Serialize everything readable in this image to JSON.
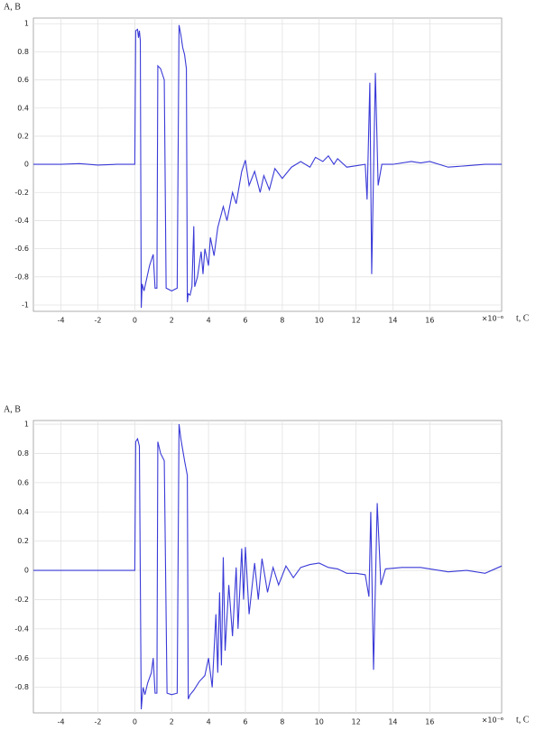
{
  "chart_data": [
    {
      "type": "line",
      "y_label": "A, B",
      "x_label": "t, C",
      "x_multiplier": "×10⁻⁶",
      "xlim": [
        -5.5,
        19.9
      ],
      "ylim": [
        -1.045,
        1.04
      ],
      "grid": true,
      "xticks": [
        -4,
        -2,
        0,
        2,
        4,
        6,
        8,
        10,
        12,
        14,
        16
      ],
      "yticks": [
        1,
        0.8,
        0.6,
        0.4,
        0.2,
        0,
        -0.2,
        -0.4,
        -0.6,
        -0.8,
        -1
      ],
      "x": [
        -5.5,
        -4,
        -3,
        -2,
        -1,
        0,
        0.05,
        0.15,
        0.2,
        0.25,
        0.3,
        0.35,
        0.4,
        0.5,
        0.6,
        0.8,
        1.0,
        1.1,
        1.2,
        1.25,
        1.4,
        1.6,
        1.7,
        2.0,
        2.3,
        2.4,
        2.5,
        2.6,
        2.7,
        2.8,
        2.85,
        2.9,
        3.0,
        3.1,
        3.2,
        3.25,
        3.4,
        3.6,
        3.7,
        3.8,
        4.0,
        4.1,
        4.3,
        4.5,
        4.8,
        5.0,
        5.3,
        5.5,
        5.8,
        6.0,
        6.2,
        6.5,
        6.8,
        7.0,
        7.3,
        7.6,
        8.0,
        8.5,
        9.0,
        9.5,
        9.8,
        10.2,
        10.5,
        10.8,
        11.0,
        11.5,
        12.0,
        12.5,
        12.6,
        12.75,
        12.85,
        13.05,
        13.2,
        13.4,
        14,
        15,
        15.5,
        16,
        17,
        18,
        19,
        19.9
      ],
      "series": [
        {
          "color": "#3a3ad8",
          "values": [
            0,
            0,
            0.005,
            -0.005,
            0,
            0,
            0.95,
            0.96,
            0.9,
            0.95,
            0.88,
            -1.02,
            -0.85,
            -0.9,
            -0.84,
            -0.72,
            -0.64,
            -0.88,
            -0.88,
            0.7,
            0.68,
            0.6,
            -0.88,
            -0.9,
            -0.88,
            0.99,
            0.92,
            0.83,
            0.78,
            0.68,
            -0.98,
            -0.92,
            -0.93,
            -0.87,
            -0.44,
            -0.87,
            -0.8,
            -0.62,
            -0.78,
            -0.6,
            -0.72,
            -0.52,
            -0.65,
            -0.45,
            -0.3,
            -0.4,
            -0.2,
            -0.28,
            -0.05,
            0.03,
            -0.15,
            -0.05,
            -0.2,
            -0.08,
            -0.18,
            -0.03,
            -0.1,
            -0.02,
            0.02,
            -0.02,
            0.05,
            0.02,
            0.06,
            0,
            0.04,
            -0.02,
            -0.01,
            0,
            -0.25,
            0.58,
            -0.78,
            0.65,
            -0.15,
            0,
            0,
            0.02,
            0.01,
            0.02,
            -0.02,
            -0.01,
            0,
            0
          ]
        }
      ]
    },
    {
      "type": "line",
      "y_label": "A, B",
      "x_label": "t, C",
      "x_multiplier": "×10⁻⁶",
      "xlim": [
        -5.5,
        19.9
      ],
      "ylim": [
        -0.975,
        1.025
      ],
      "grid": true,
      "xticks": [
        -4,
        -2,
        0,
        2,
        4,
        6,
        8,
        10,
        12,
        14,
        16
      ],
      "yticks": [
        1,
        0.8,
        0.6,
        0.4,
        0.2,
        0,
        -0.2,
        -0.4,
        -0.6,
        -0.8
      ],
      "x": [
        -5.5,
        -2,
        0,
        0.05,
        0.15,
        0.25,
        0.35,
        0.45,
        0.55,
        0.7,
        0.9,
        1.0,
        1.1,
        1.2,
        1.25,
        1.4,
        1.6,
        1.75,
        2.0,
        2.3,
        2.4,
        2.5,
        2.7,
        2.85,
        2.9,
        3.0,
        3.2,
        3.5,
        3.8,
        4.0,
        4.2,
        4.4,
        4.5,
        4.6,
        4.7,
        4.8,
        4.9,
        5.1,
        5.3,
        5.5,
        5.6,
        5.8,
        5.9,
        6.0,
        6.2,
        6.5,
        6.7,
        6.9,
        7.2,
        7.5,
        7.8,
        8.2,
        8.6,
        9.0,
        9.5,
        10.0,
        10.5,
        11.0,
        11.5,
        12.0,
        12.5,
        12.7,
        12.8,
        12.95,
        13.15,
        13.35,
        13.6,
        14.5,
        15.5,
        16,
        17,
        18,
        19,
        19.9
      ],
      "series": [
        {
          "color": "#3a3ad8",
          "values": [
            0,
            0,
            0,
            0.88,
            0.9,
            0.85,
            -0.95,
            -0.8,
            -0.85,
            -0.77,
            -0.7,
            -0.6,
            -0.84,
            -0.84,
            0.88,
            0.8,
            0.75,
            -0.84,
            -0.85,
            -0.84,
            1.0,
            0.9,
            0.75,
            0.65,
            -0.88,
            -0.85,
            -0.82,
            -0.76,
            -0.72,
            -0.6,
            -0.8,
            -0.3,
            -0.7,
            -0.15,
            -0.65,
            0.09,
            -0.55,
            -0.1,
            -0.45,
            0.02,
            -0.4,
            0.15,
            -0.2,
            0.16,
            -0.3,
            0.05,
            -0.2,
            0.08,
            -0.15,
            0.02,
            -0.1,
            0.03,
            -0.05,
            0.02,
            0.04,
            0.05,
            0.02,
            0.01,
            -0.02,
            -0.02,
            -0.03,
            -0.18,
            0.4,
            -0.68,
            0.46,
            -0.1,
            0.01,
            0.02,
            0.02,
            0.01,
            -0.01,
            0,
            -0.02,
            0.03
          ]
        }
      ]
    }
  ]
}
